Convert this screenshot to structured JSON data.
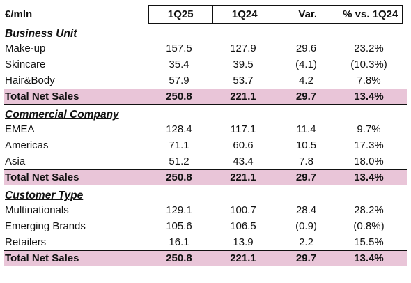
{
  "header": {
    "unit_label": "€/mln",
    "col1": "1Q25",
    "col2": "1Q24",
    "col3": "Var.",
    "col4": "% vs. 1Q24"
  },
  "sections": [
    {
      "title": "Business Unit",
      "rows": [
        {
          "label": "Make-up",
          "q125": "157.5",
          "q124": "127.9",
          "var": "29.6",
          "pct": "23.2%"
        },
        {
          "label": "Skincare",
          "q125": "35.4",
          "q124": "39.5",
          "var": "(4.1)",
          "pct": "(10.3%)"
        },
        {
          "label": "Hair&Body",
          "q125": "57.9",
          "q124": "53.7",
          "var": "4.2",
          "pct": "7.8%"
        }
      ],
      "total": {
        "label": "Total Net Sales",
        "q125": "250.8",
        "q124": "221.1",
        "var": "29.7",
        "pct": "13.4%"
      }
    },
    {
      "title": "Commercial Company",
      "rows": [
        {
          "label": "EMEA",
          "q125": "128.4",
          "q124": "117.1",
          "var": "11.4",
          "pct": "9.7%"
        },
        {
          "label": "Americas",
          "q125": "71.1",
          "q124": "60.6",
          "var": "10.5",
          "pct": "17.3%"
        },
        {
          "label": "Asia",
          "q125": "51.2",
          "q124": "43.4",
          "var": "7.8",
          "pct": "18.0%"
        }
      ],
      "total": {
        "label": "Total Net Sales",
        "q125": "250.8",
        "q124": "221.1",
        "var": "29.7",
        "pct": "13.4%"
      }
    },
    {
      "title": "Customer Type",
      "rows": [
        {
          "label": "Multinationals",
          "q125": "129.1",
          "q124": "100.7",
          "var": "28.4",
          "pct": "28.2%"
        },
        {
          "label": "Emerging Brands",
          "q125": "105.6",
          "q124": "106.5",
          "var": "(0.9)",
          "pct": "(0.8%)"
        },
        {
          "label": "Retailers",
          "q125": "16.1",
          "q124": "13.9",
          "var": "2.2",
          "pct": "15.5%"
        }
      ],
      "total": {
        "label": "Total Net Sales",
        "q125": "250.8",
        "q124": "221.1",
        "var": "29.7",
        "pct": "13.4%"
      }
    }
  ],
  "colors": {
    "total_row_bg": "#e9c5d8",
    "text": "#111111",
    "border": "#111111"
  }
}
